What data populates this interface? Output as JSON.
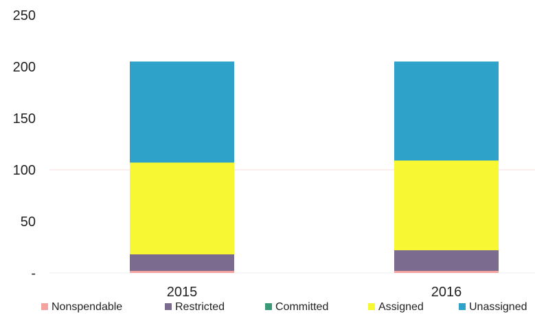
{
  "chart_data": {
    "type": "bar",
    "stacked": true,
    "categories": [
      "2015",
      "2016"
    ],
    "series": [
      {
        "name": "Nonspendable",
        "values": [
          2,
          2
        ],
        "color": "#f4a3a0"
      },
      {
        "name": "Restricted",
        "values": [
          16,
          20
        ],
        "color": "#7b6b8e"
      },
      {
        "name": "Committed",
        "values": [
          0,
          0
        ],
        "color": "#3a9a78"
      },
      {
        "name": "Assigned",
        "values": [
          89,
          87
        ],
        "color": "#f7f733"
      },
      {
        "name": "Unassigned",
        "values": [
          98,
          96
        ],
        "color": "#2ea2c8"
      }
    ],
    "ylim": [
      0,
      250
    ],
    "yticks": [
      {
        "value": 0,
        "label": "-"
      },
      {
        "value": 50,
        "label": "50"
      },
      {
        "value": 100,
        "label": "100"
      },
      {
        "value": 150,
        "label": "150"
      },
      {
        "value": 200,
        "label": "200"
      },
      {
        "value": 250,
        "label": "250"
      }
    ],
    "title": "",
    "xlabel": "",
    "ylabel": "",
    "legend": "bottom",
    "grid": false
  }
}
